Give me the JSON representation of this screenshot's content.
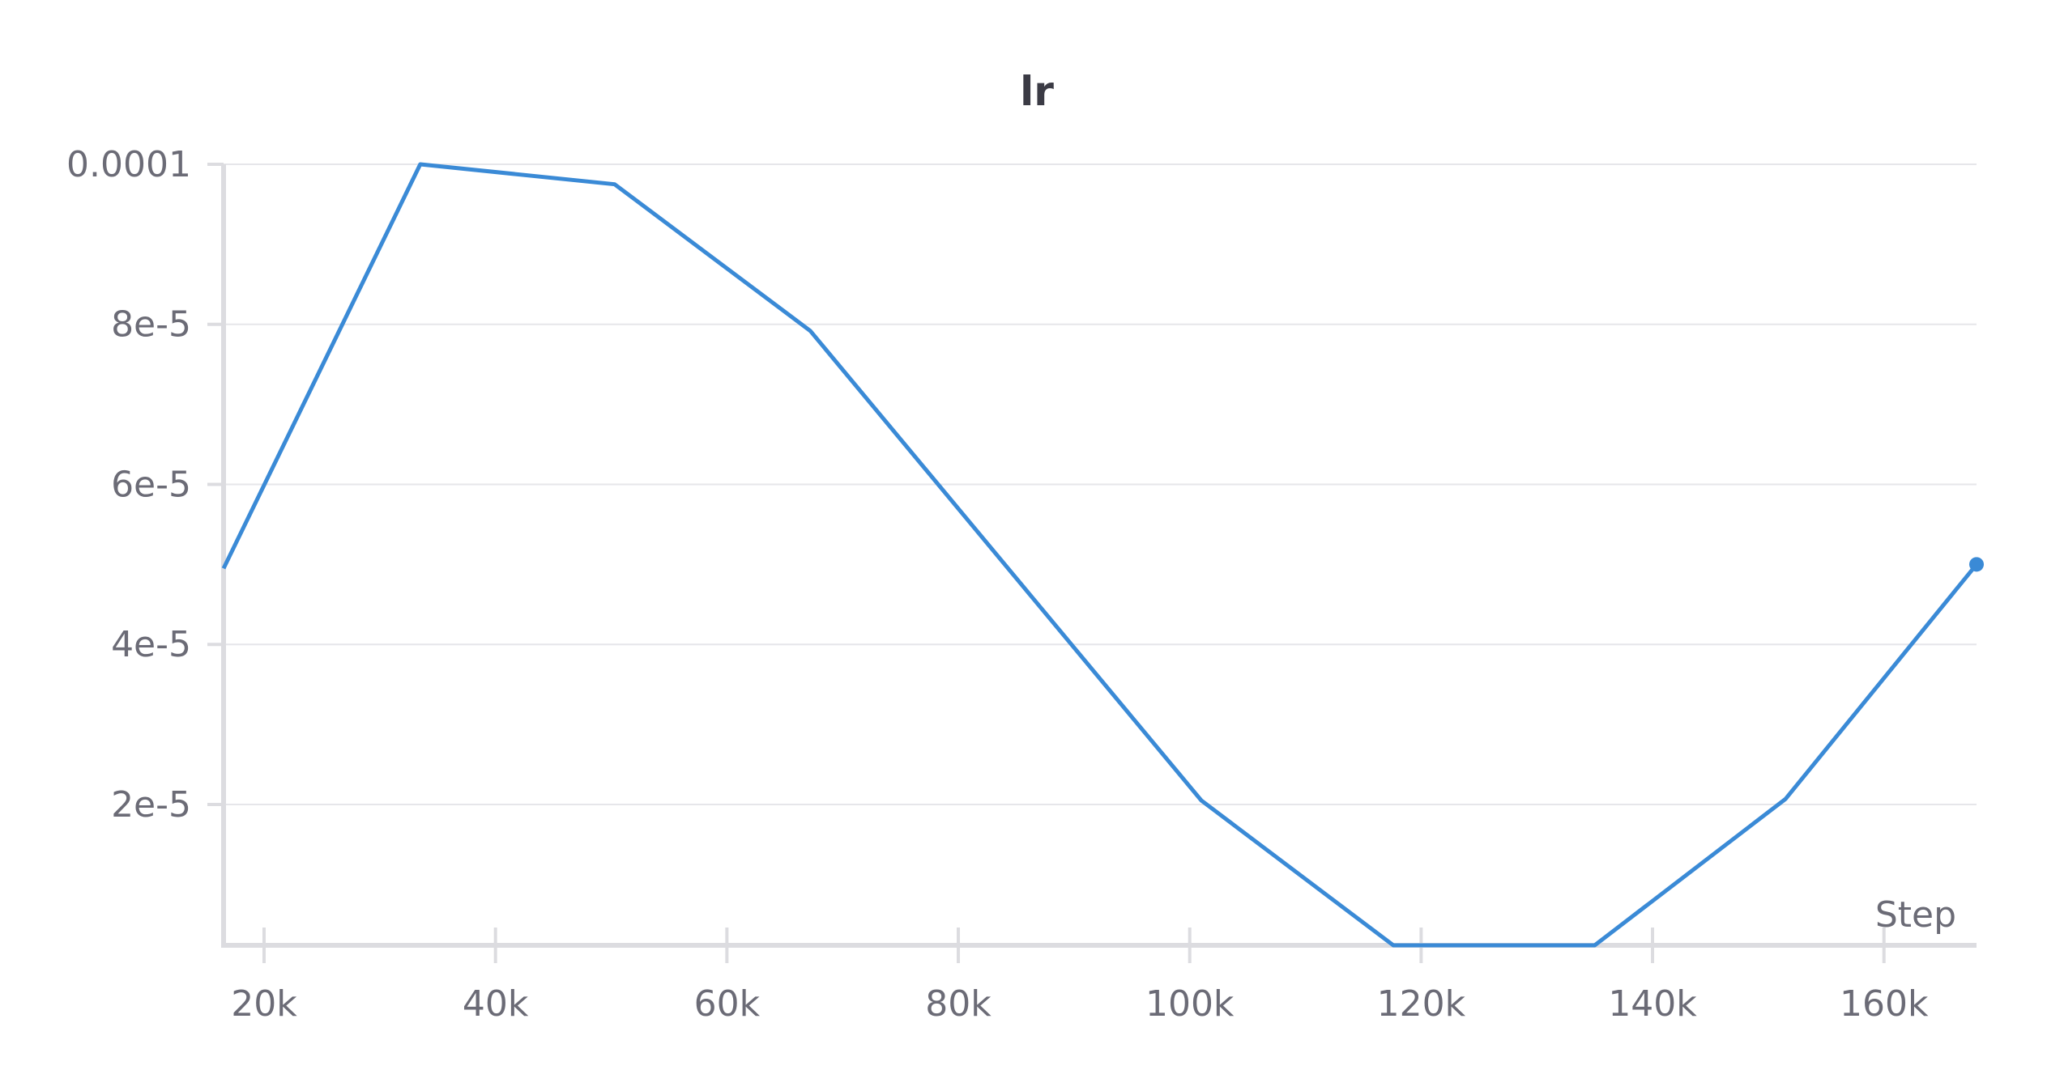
{
  "chart_data": {
    "type": "line",
    "title": "lr",
    "xlabel": "Step",
    "ylabel": "",
    "xlim": [
      16500,
      168000
    ],
    "ylim": [
      2.4e-06,
      0.0001
    ],
    "x_ticks": [
      {
        "value": 20000,
        "label": "20k"
      },
      {
        "value": 40000,
        "label": "40k"
      },
      {
        "value": 60000,
        "label": "60k"
      },
      {
        "value": 80000,
        "label": "80k"
      },
      {
        "value": 100000,
        "label": "100k"
      },
      {
        "value": 120000,
        "label": "120k"
      },
      {
        "value": 140000,
        "label": "140k"
      },
      {
        "value": 160000,
        "label": "160k"
      }
    ],
    "y_ticks": [
      {
        "value": 2e-05,
        "label": "2e-5"
      },
      {
        "value": 4e-05,
        "label": "4e-5"
      },
      {
        "value": 6e-05,
        "label": "6e-5"
      },
      {
        "value": 8e-05,
        "label": "8e-5"
      },
      {
        "value": 0.0001,
        "label": "0.0001"
      }
    ],
    "grid": true,
    "series": [
      {
        "color": "#3a8ad6",
        "x": [
          16500,
          33500,
          50300,
          67200,
          101000,
          117600,
          135000,
          151500,
          168000
        ],
        "y": [
          4.95e-05,
          0.0001,
          9.75e-05,
          7.92e-05,
          2.05e-05,
          2.4e-06,
          2.4e-06,
          2.07e-05,
          5e-05
        ]
      }
    ]
  }
}
